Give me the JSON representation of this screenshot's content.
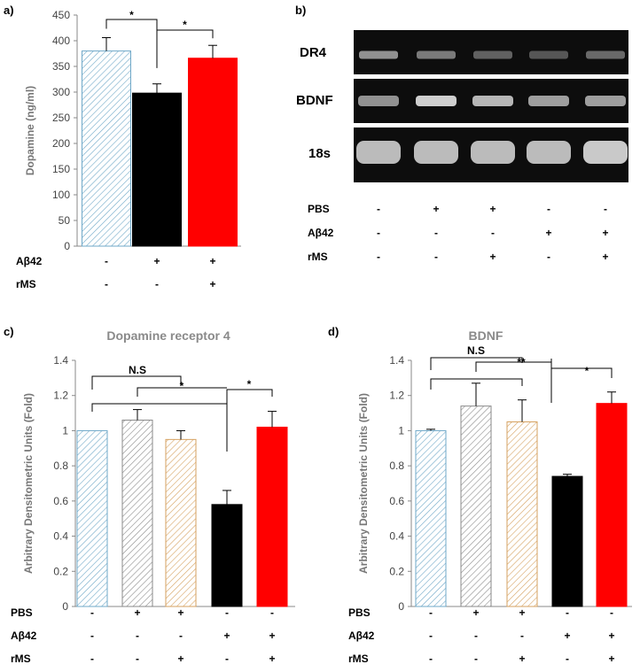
{
  "panels": {
    "a": {
      "letter": "a)"
    },
    "b": {
      "letter": "b)"
    },
    "c": {
      "letter": "c)"
    },
    "d": {
      "letter": "d)"
    }
  },
  "gel": {
    "bands": [
      "DR4",
      "BDNF",
      "18s"
    ],
    "conditions": [
      {
        "label": "PBS",
        "signs": [
          "-",
          "+",
          "+",
          "-",
          "-"
        ]
      },
      {
        "label": "Aβ42",
        "signs": [
          "-",
          "-",
          "-",
          "+",
          "+"
        ]
      },
      {
        "label": "rMS",
        "signs": [
          "-",
          "-",
          "+",
          "-",
          "+"
        ]
      }
    ]
  },
  "chart_data": [
    {
      "id": "a",
      "type": "bar",
      "title": "",
      "ylabel": "Dopamine (ng/ml)",
      "ylim": [
        0,
        450
      ],
      "yticks": [
        0,
        50,
        100,
        150,
        200,
        250,
        300,
        350,
        400,
        450
      ],
      "values": [
        380,
        298,
        366
      ],
      "errors": [
        26,
        18,
        25
      ],
      "bar_colors": [
        "#6fa8c8",
        "#000000",
        "#ff0000"
      ],
      "hatched": [
        true,
        false,
        false
      ],
      "conditions": [
        {
          "label": "Aβ42",
          "signs": [
            "-",
            "+",
            "+"
          ]
        },
        {
          "label": "rMS",
          "signs": [
            "-",
            "-",
            "+"
          ]
        }
      ],
      "significance": [
        {
          "from": 0,
          "to": 1,
          "label": "*"
        },
        {
          "from": 1,
          "to": 2,
          "label": "*"
        }
      ]
    },
    {
      "id": "c",
      "type": "bar",
      "title": "Dopamine receptor 4",
      "ylabel": "Arbitrary Densitometric Units (Fold)",
      "ylim": [
        0,
        1.4
      ],
      "yticks": [
        "0",
        "0.2",
        "0.4",
        "0.6",
        "0.8",
        "1",
        "1.2",
        "1.4"
      ],
      "values": [
        1.0,
        1.06,
        0.95,
        0.58,
        1.02
      ],
      "errors": [
        0.0,
        0.06,
        0.05,
        0.08,
        0.09
      ],
      "bar_colors": [
        "#6fa8c8",
        "#8a8a8a",
        "#d6a261",
        "#000000",
        "#ff0000"
      ],
      "hatched": [
        true,
        true,
        true,
        false,
        false
      ],
      "conditions": [
        {
          "label": "PBS",
          "signs": [
            "-",
            "+",
            "+",
            "-",
            "-"
          ]
        },
        {
          "label": "Aβ42",
          "signs": [
            "-",
            "-",
            "-",
            "+",
            "+"
          ]
        },
        {
          "label": "rMS",
          "signs": [
            "-",
            "-",
            "+",
            "-",
            "+"
          ]
        }
      ],
      "significance": [
        {
          "label": "N.S"
        },
        {
          "label": "*"
        },
        {
          "label": "*"
        }
      ]
    },
    {
      "id": "d",
      "type": "bar",
      "title": "BDNF",
      "ylabel": "Arbitrary Densitometric Units (Fold)",
      "ylim": [
        0,
        1.4
      ],
      "yticks": [
        "0",
        "0.2",
        "0.4",
        "0.6",
        "0.8",
        "1",
        "1.2",
        "1.4"
      ],
      "values": [
        1.0,
        1.14,
        1.05,
        0.74,
        1.155
      ],
      "errors": [
        0.008,
        0.13,
        0.125,
        0.012,
        0.065
      ],
      "bar_colors": [
        "#6fa8c8",
        "#8a8a8a",
        "#d6a261",
        "#000000",
        "#ff0000"
      ],
      "hatched": [
        true,
        true,
        true,
        false,
        false
      ],
      "conditions": [
        {
          "label": "PBS",
          "signs": [
            "-",
            "+",
            "+",
            "-",
            "-"
          ]
        },
        {
          "label": "Aβ42",
          "signs": [
            "-",
            "-",
            "-",
            "+",
            "+"
          ]
        },
        {
          "label": "rMS",
          "signs": [
            "-",
            "-",
            "+",
            "-",
            "+"
          ]
        }
      ],
      "significance": [
        {
          "label": "N.S"
        },
        {
          "label": "**"
        },
        {
          "label": "*"
        }
      ]
    }
  ]
}
